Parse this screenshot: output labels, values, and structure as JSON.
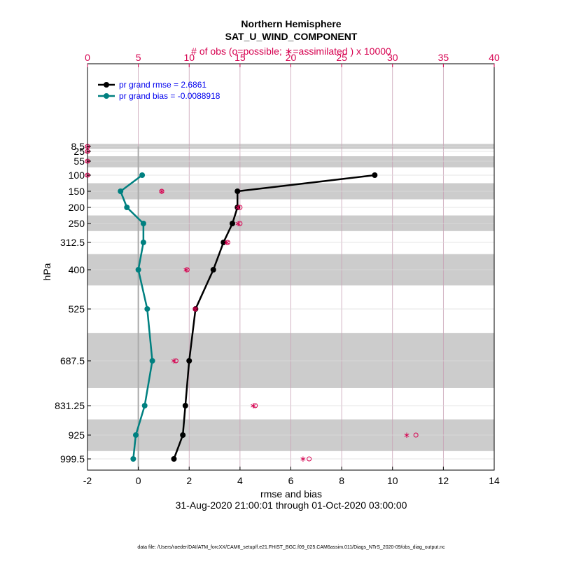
{
  "chart_data": {
    "type": "line",
    "title": "Northern Hemisphere",
    "subtitle": "SAT_U_WIND_COMPONENT",
    "top_axis_label": "# of obs (o=possible; ∗=assimilated ) x 10000",
    "xlabel": "rmse and bias",
    "ylabel": "hPa",
    "date_range": "31-Aug-2020 21:00:01 through 01-Oct-2020 03:00:00",
    "footnote": "data file: /Users/raeder/DAI/ATM_forcXX/CAM6_setup/f.e21.FHIST_BGC.f09_025.CAM6assim.011/Diags_NTrS_2020-09/obs_diag_output.nc",
    "xlim": [
      -2,
      14
    ],
    "x_ticks": [
      "-2",
      "0",
      "2",
      "4",
      "6",
      "8",
      "10",
      "12",
      "14"
    ],
    "top_xlim": [
      0,
      40
    ],
    "top_ticks": [
      "0",
      "5",
      "10",
      "15",
      "20",
      "25",
      "30",
      "35",
      "40"
    ],
    "y_scale": "pressure levels (top at ~8 hPa, bottom near 1000 hPa)",
    "y_ticks": [
      "8.5",
      "25",
      "55",
      "100",
      "150",
      "200",
      "250",
      "312.5",
      "400",
      "525",
      "687.5",
      "831.25",
      "925",
      "999.5"
    ],
    "layer_bands_hPa": [
      [
        0.2,
        17
      ],
      [
        40,
        75
      ],
      [
        125,
        175
      ],
      [
        225,
        275
      ],
      [
        350,
        450
      ],
      [
        600,
        775
      ],
      [
        875,
        975
      ]
    ],
    "grid": true,
    "legend_position": "top-left",
    "series": [
      {
        "name": "pr grand rmse = 2.6861",
        "color": "#000000",
        "levels": [
          100,
          150,
          200,
          250,
          312.5,
          400,
          525,
          687.5,
          831.25,
          925,
          999.5
        ],
        "values": [
          9.3,
          3.9,
          3.9,
          3.7,
          3.35,
          2.95,
          2.25,
          2.0,
          1.85,
          1.75,
          1.4
        ]
      },
      {
        "name": "pr grand bias = -0.0088918",
        "color": "#008080",
        "levels": [
          100,
          150,
          200,
          250,
          312.5,
          400,
          525,
          687.5,
          831.25,
          925,
          999.5
        ],
        "values": [
          0.15,
          -0.7,
          -0.45,
          0.2,
          0.2,
          0.0,
          0.35,
          0.55,
          0.25,
          -0.1,
          -0.2
        ]
      }
    ],
    "obs_counts": {
      "color": "#d6004f",
      "levels": [
        8.5,
        25,
        55,
        100,
        150,
        200,
        250,
        312.5,
        400,
        525,
        687.5,
        831.25,
        925,
        999.5
      ],
      "possible": [
        0,
        0,
        0,
        0,
        7.3,
        15.0,
        15.0,
        13.8,
        9.8,
        10.6,
        8.7,
        16.5,
        32.3,
        21.8
      ],
      "assimilated": [
        0,
        0,
        0,
        0,
        7.3,
        14.8,
        14.8,
        13.7,
        9.7,
        10.6,
        8.5,
        16.3,
        31.4,
        21.2
      ]
    }
  }
}
